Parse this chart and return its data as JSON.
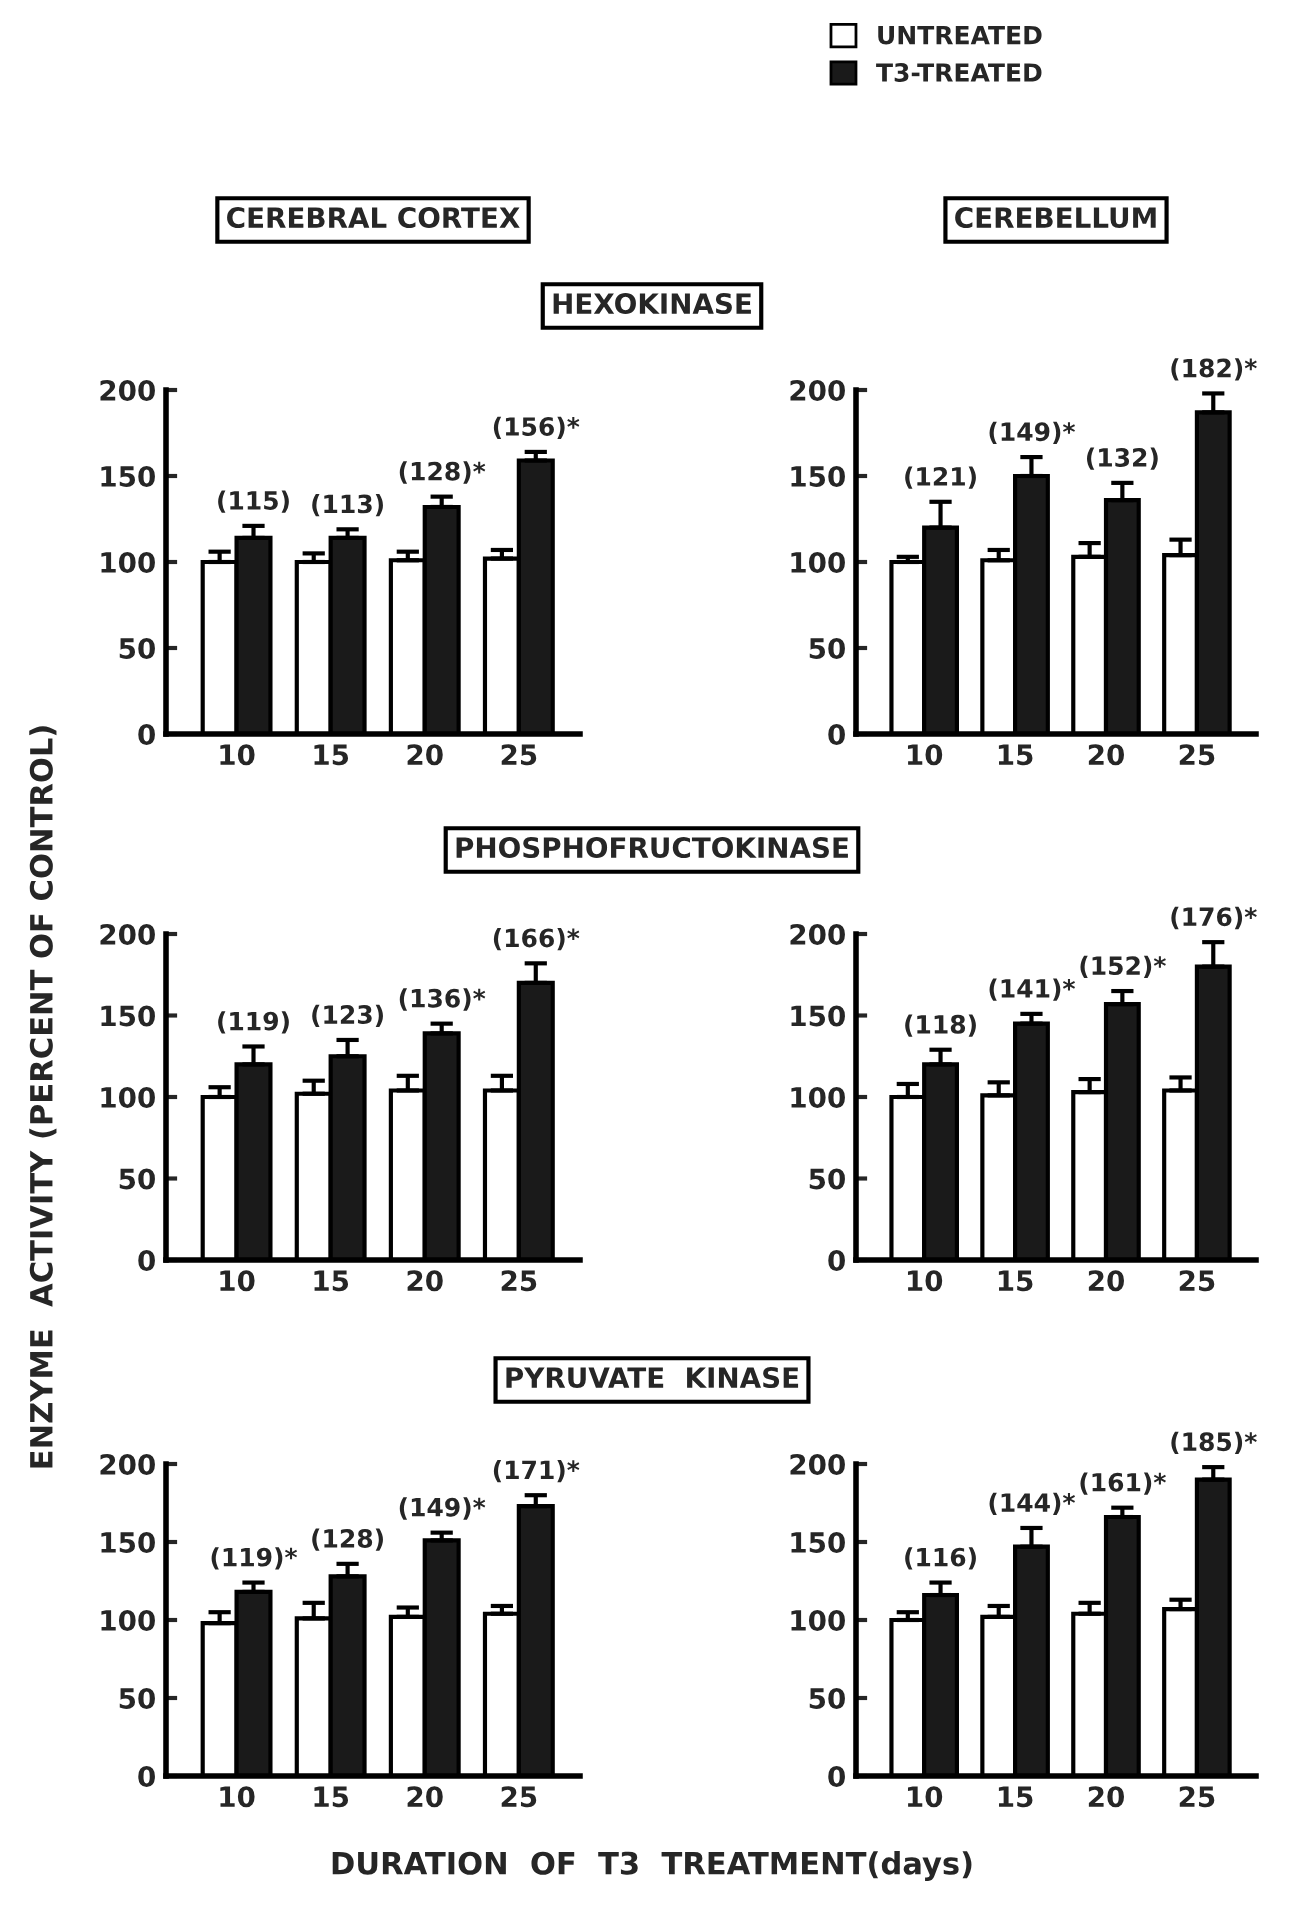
{
  "chart_data": [
    {
      "type": "bar",
      "title": "HEXOKINASE",
      "categories": [
        "10",
        "15",
        "20",
        "25"
      ],
      "ylim": [
        0,
        200
      ],
      "yticks": [
        0,
        50,
        100,
        150,
        200
      ],
      "grid": false,
      "annotations": [
        "CEREBRAL CORTEX",
        {
          "text": "(115)",
          "x": "10",
          "y": 121
        },
        {
          "text": "(113)",
          "x": "15",
          "y": 119
        },
        {
          "text": "(128)*",
          "x": "20",
          "y": 138
        },
        {
          "text": "(156)*",
          "x": "25",
          "y": 164
        }
      ],
      "series": [
        {
          "color": "#ffffff",
          "values": [
            100,
            100,
            101,
            102
          ],
          "errors": [
            6,
            5,
            5,
            5
          ]
        },
        {
          "color": "#1a1a1a",
          "values": [
            114,
            114,
            132,
            159
          ],
          "errors": [
            7,
            5,
            6,
            5
          ]
        }
      ]
    },
    {
      "type": "bar",
      "legend": "top",
      "categories": [
        "10",
        "15",
        "20",
        "25"
      ],
      "ylim": [
        0,
        200
      ],
      "yticks": [
        0,
        50,
        100,
        150,
        200
      ],
      "grid": false,
      "annotations": [
        "CEREBELLUM",
        {
          "text": "(121)",
          "x": "10",
          "y": 135
        },
        {
          "text": "(149)*",
          "x": "15",
          "y": 161
        },
        {
          "text": "(132)",
          "x": "20",
          "y": 146
        },
        {
          "text": "(182)*",
          "x": "25",
          "y": 198
        }
      ],
      "series": [
        {
          "name": "UNTREATED",
          "color": "#ffffff",
          "values": [
            100,
            101,
            103,
            104
          ],
          "errors": [
            3,
            6,
            8,
            9
          ]
        },
        {
          "name": "T3-TREATED",
          "color": "#1a1a1a",
          "values": [
            120,
            150,
            136,
            187
          ],
          "errors": [
            15,
            11,
            10,
            11
          ]
        }
      ]
    },
    {
      "type": "bar",
      "title": "PHOSPHOFRUCTOKINASE",
      "ylabel": "ENZYME  ACTIVITY (PERCENT OF CONTROL)",
      "categories": [
        "10",
        "15",
        "20",
        "25"
      ],
      "ylim": [
        0,
        200
      ],
      "yticks": [
        0,
        50,
        100,
        150,
        200
      ],
      "grid": false,
      "annotations": [
        {
          "text": "(119)",
          "x": "10",
          "y": 131
        },
        {
          "text": "(123)",
          "x": "15",
          "y": 135
        },
        {
          "text": "(136)*",
          "x": "20",
          "y": 145
        },
        {
          "text": "(166)*",
          "x": "25",
          "y": 182
        }
      ],
      "series": [
        {
          "color": "#ffffff",
          "values": [
            100,
            102,
            104,
            104
          ],
          "errors": [
            6,
            8,
            9,
            9
          ]
        },
        {
          "color": "#1a1a1a",
          "values": [
            120,
            125,
            139,
            170
          ],
          "errors": [
            11,
            10,
            6,
            12
          ]
        }
      ]
    },
    {
      "type": "bar",
      "categories": [
        "10",
        "15",
        "20",
        "25"
      ],
      "ylim": [
        0,
        200
      ],
      "yticks": [
        0,
        50,
        100,
        150,
        200
      ],
      "grid": false,
      "annotations": [
        {
          "text": "(118)",
          "x": "10",
          "y": 129
        },
        {
          "text": "(141)*",
          "x": "15",
          "y": 151
        },
        {
          "text": "(152)*",
          "x": "20",
          "y": 165
        },
        {
          "text": "(176)*",
          "x": "25",
          "y": 195
        }
      ],
      "series": [
        {
          "color": "#ffffff",
          "values": [
            100,
            101,
            103,
            104
          ],
          "errors": [
            8,
            8,
            8,
            8
          ]
        },
        {
          "color": "#1a1a1a",
          "values": [
            120,
            145,
            157,
            180
          ],
          "errors": [
            9,
            6,
            8,
            15
          ]
        }
      ]
    },
    {
      "type": "bar",
      "title": "PYRUVATE  KINASE",
      "xlabel": "DURATION  OF  T3  TREATMENT(days)",
      "categories": [
        "10",
        "15",
        "20",
        "25"
      ],
      "ylim": [
        0,
        200
      ],
      "yticks": [
        0,
        50,
        100,
        150,
        200
      ],
      "grid": false,
      "annotations": [
        {
          "text": "(119)*",
          "x": "10",
          "y": 124
        },
        {
          "text": "(128)",
          "x": "15",
          "y": 136
        },
        {
          "text": "(149)*",
          "x": "20",
          "y": 156
        },
        {
          "text": "(171)*",
          "x": "25",
          "y": 180
        }
      ],
      "series": [
        {
          "color": "#ffffff",
          "values": [
            98,
            101,
            102,
            104
          ],
          "errors": [
            7,
            10,
            6,
            5
          ]
        },
        {
          "color": "#1a1a1a",
          "values": [
            118,
            128,
            151,
            173
          ],
          "errors": [
            6,
            8,
            5,
            7
          ]
        }
      ]
    },
    {
      "type": "bar",
      "categories": [
        "10",
        "15",
        "20",
        "25"
      ],
      "ylim": [
        0,
        200
      ],
      "yticks": [
        0,
        50,
        100,
        150,
        200
      ],
      "grid": false,
      "annotations": [
        {
          "text": "(116)",
          "x": "10",
          "y": 124
        },
        {
          "text": "(144)*",
          "x": "15",
          "y": 159
        },
        {
          "text": "(161)*",
          "x": "20",
          "y": 172
        },
        {
          "text": "(185)*",
          "x": "25",
          "y": 198
        }
      ],
      "series": [
        {
          "color": "#ffffff",
          "values": [
            100,
            102,
            104,
            107
          ],
          "errors": [
            5,
            7,
            7,
            6
          ]
        },
        {
          "color": "#1a1a1a",
          "values": [
            116,
            147,
            166,
            190
          ],
          "errors": [
            8,
            12,
            6,
            8
          ]
        }
      ]
    }
  ]
}
